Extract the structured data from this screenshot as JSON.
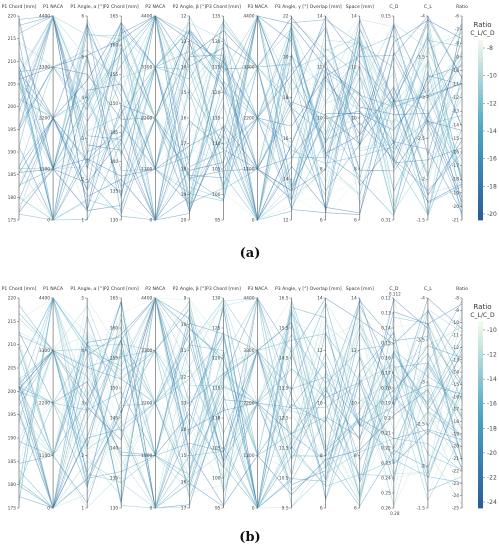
{
  "captions": {
    "a": "(a)",
    "b": "(b)"
  },
  "chart_data": [
    {
      "type": "parallel_coordinates",
      "panel": "a",
      "dimensions": [
        {
          "label": "P1 Chord [mm]",
          "ticks": [
            "220",
            "215",
            "210",
            "205",
            "200",
            "195",
            "190",
            "185",
            "180",
            "175"
          ]
        },
        {
          "label": "P1 NACA",
          "ticks": [
            "4400",
            "3300",
            "2200",
            "1100",
            "0"
          ]
        },
        {
          "label": "P1 Angle, α [°]",
          "ticks": [
            "6",
            "5",
            "4",
            "3",
            "2",
            "1"
          ]
        },
        {
          "label": "P2 Chord [mm]",
          "ticks": [
            "165",
            "160",
            "155",
            "150",
            "145",
            "140",
            "135",
            "130"
          ]
        },
        {
          "label": "P2 NACA",
          "ticks": [
            "4400",
            "3300",
            "2200",
            "1100",
            "0"
          ]
        },
        {
          "label": "P2 Angle, β [°]",
          "ticks": [
            "12",
            "13",
            "14",
            "15",
            "16",
            "17",
            "18",
            "19",
            "20"
          ]
        },
        {
          "label": "P3 Chord [mm]",
          "ticks": [
            "135",
            "130",
            "125",
            "120",
            "115",
            "110",
            "105",
            "100",
            "95"
          ]
        },
        {
          "label": "P3 NACA",
          "ticks": [
            "4400",
            "3300",
            "2200",
            "1100",
            "0"
          ]
        },
        {
          "label": "P3 Angle, γ [°]",
          "ticks": [
            "22",
            "20",
            "18",
            "16",
            "14",
            "12"
          ]
        },
        {
          "label": "Overlap [mm]",
          "ticks": [
            "14",
            "12",
            "10",
            "8",
            "6"
          ]
        },
        {
          "label": "Space [mm]",
          "ticks": [
            "14",
            "12",
            "10",
            "8",
            "6"
          ]
        },
        {
          "label": "C_D",
          "ticks": [
            "0.15",
            "0.31"
          ]
        },
        {
          "label": "C_L",
          "ticks": [
            "-4",
            "-3.5",
            "-3",
            "-2.5",
            "-2",
            "-1.5"
          ]
        },
        {
          "label": "Ratio",
          "ticks": [
            "-6",
            "-7",
            "-8",
            "-9",
            "-10",
            "-11",
            "-12",
            "-13",
            "-14",
            "-15",
            "-16",
            "-17",
            "-18",
            "-19",
            "-20",
            "-21"
          ]
        }
      ],
      "colorbar": {
        "title": "Ratio",
        "subtitle": "C_L/C_D",
        "ticks": [
          "-8",
          "-10",
          "-12",
          "-14",
          "-16",
          "-18",
          "-20"
        ],
        "range": [
          -21,
          -6
        ]
      },
      "colors": {
        "low": "#2b5d9b",
        "mid": "#4aa5c4",
        "high": "#f0f9e8"
      },
      "grid": false
    },
    {
      "type": "parallel_coordinates",
      "panel": "b",
      "dimensions": [
        {
          "label": "P1 Chord [mm]",
          "ticks": [
            "220",
            "215",
            "210",
            "205",
            "200",
            "195",
            "190",
            "185",
            "180",
            "175"
          ]
        },
        {
          "label": "P1 NACA",
          "ticks": [
            "4400",
            "3300",
            "2200",
            "1100",
            "0"
          ]
        },
        {
          "label": "P1 Angle, α [°]",
          "ticks": [
            "5",
            "4",
            "3",
            "2",
            "1"
          ]
        },
        {
          "label": "P2 Chord [mm]",
          "ticks": [
            "165",
            "160",
            "155",
            "150",
            "145",
            "140",
            "135",
            "130"
          ]
        },
        {
          "label": "P2 NACA",
          "ticks": [
            "4400",
            "3300",
            "2200",
            "1100",
            "0"
          ]
        },
        {
          "label": "P2 Angle, β [°]",
          "ticks": [
            "9",
            "10",
            "11",
            "12",
            "13",
            "14",
            "15",
            "16",
            "17"
          ]
        },
        {
          "label": "P3 Chord [mm]",
          "ticks": [
            "130",
            "125",
            "120",
            "115",
            "110",
            "105",
            "100",
            "95"
          ]
        },
        {
          "label": "P3 NACA",
          "ticks": [
            "4400",
            "3300",
            "2200",
            "1100",
            "0"
          ]
        },
        {
          "label": "P3 Angle, γ [°]",
          "ticks": [
            "16.5",
            "15.5",
            "14.5",
            "13.5",
            "12.5",
            "11.5",
            "10.5",
            "9.5"
          ]
        },
        {
          "label": "Overlap [mm]",
          "ticks": [
            "14",
            "12",
            "10",
            "8",
            "6"
          ]
        },
        {
          "label": "Space [mm]",
          "ticks": [
            "14",
            "12",
            "10",
            "8",
            "6"
          ]
        },
        {
          "label": "C_D",
          "ticks": [
            "0.12",
            "0.13",
            "0.14",
            "0.15",
            "0.16",
            "0.17",
            "0.18",
            "0.19",
            "0.2",
            "0.21",
            "0.22",
            "0.23",
            "0.24",
            "0.25",
            "0.26"
          ],
          "extra_top": "0.112",
          "extra_bottom": "0.28"
        },
        {
          "label": "C_L",
          "ticks": [
            "-4",
            "-3.5",
            "-3",
            "-2.5",
            "-2",
            "-1.5"
          ]
        },
        {
          "label": "Ratio",
          "ticks": [
            "-8",
            "-9",
            "-10",
            "-11",
            "-12",
            "-13",
            "-14",
            "-15",
            "-16",
            "-17",
            "-18",
            "-19",
            "-20",
            "-21",
            "-22",
            "-23",
            "-24",
            "-25"
          ]
        }
      ],
      "colorbar": {
        "title": "Ratio",
        "subtitle": "C_L/C_D",
        "ticks": [
          "-10",
          "-12",
          "-14",
          "-16",
          "-18",
          "-20",
          "-22",
          "-24"
        ],
        "range": [
          -25,
          -8
        ]
      },
      "colors": {
        "low": "#2b5d9b",
        "mid": "#4aa5c4",
        "high": "#f0f9e8"
      },
      "grid": false
    }
  ]
}
